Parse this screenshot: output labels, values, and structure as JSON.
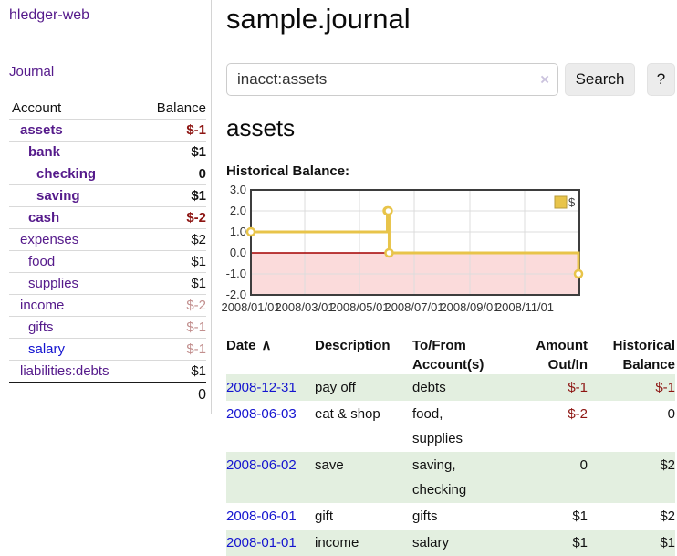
{
  "app_title": "hledger-web",
  "colors": {
    "link_purple": "#551a8b",
    "link_blue": "#1515d0",
    "negative_strong": "#8d1512",
    "negative_faded": "#c28f8e",
    "row_highlight_green": "#e3efe0",
    "button_gray": "#ececec"
  },
  "sidebar": {
    "journal_link": "Journal",
    "account_header": "Account",
    "balance_header": "Balance",
    "accounts": [
      {
        "name": "assets",
        "balance": "$-1",
        "indent": 1,
        "in_account": true,
        "name_style": "purple",
        "balance_style": "negative"
      },
      {
        "name": "bank",
        "balance": "$1",
        "indent": 2,
        "in_account": true,
        "name_style": "purple",
        "balance_style": "normal"
      },
      {
        "name": "checking",
        "balance": "0",
        "indent": 3,
        "in_account": true,
        "name_style": "purple",
        "balance_style": "normal"
      },
      {
        "name": "saving",
        "balance": "$1",
        "indent": 3,
        "in_account": true,
        "name_style": "purple",
        "balance_style": "normal"
      },
      {
        "name": "cash",
        "balance": "$-2",
        "indent": 2,
        "in_account": true,
        "name_style": "purple",
        "balance_style": "negative"
      },
      {
        "name": "expenses",
        "balance": "$2",
        "indent": 1,
        "in_account": false,
        "name_style": "purple",
        "balance_style": "normal"
      },
      {
        "name": "food",
        "balance": "$1",
        "indent": 2,
        "in_account": false,
        "name_style": "purple",
        "balance_style": "normal"
      },
      {
        "name": "supplies",
        "balance": "$1",
        "indent": 2,
        "in_account": false,
        "name_style": "purple",
        "balance_style": "normal"
      },
      {
        "name": "income",
        "balance": "$-2",
        "indent": 1,
        "in_account": false,
        "name_style": "purple",
        "balance_style": "negative-faded"
      },
      {
        "name": "gifts",
        "balance": "$-1",
        "indent": 2,
        "in_account": false,
        "name_style": "purple",
        "balance_style": "negative-faded"
      },
      {
        "name": "salary",
        "balance": "$-1",
        "indent": 2,
        "in_account": false,
        "name_style": "blue",
        "balance_style": "negative-faded"
      },
      {
        "name": "liabilities:debts",
        "balance": "$1",
        "indent": 1,
        "in_account": false,
        "name_style": "purple",
        "balance_style": "normal"
      }
    ],
    "total": "0"
  },
  "main": {
    "title": "sample.journal",
    "search": {
      "value": "inacct:assets",
      "clear_icon": "×",
      "search_button": "Search",
      "help_button": "?"
    },
    "account_heading": "assets"
  },
  "chart_data": {
    "type": "line",
    "step": true,
    "title": "Historical Balance:",
    "legend": [
      {
        "label": "$",
        "color": "#e8c44a"
      }
    ],
    "legend_position": "top-right",
    "grid": true,
    "x_range": [
      "2008-01-01",
      "2009-01-01"
    ],
    "x_ticks": [
      "2008/01/01",
      "2008/03/01",
      "2008/05/01",
      "2008/07/01",
      "2008/09/01",
      "2008/11/01"
    ],
    "y_ticks": [
      "3.0",
      "2.0",
      "1.0",
      "0.0",
      "-1.0",
      "-2.0"
    ],
    "ylim": [
      -2,
      3
    ],
    "series": [
      {
        "name": "$",
        "points": [
          {
            "date": "2008-01-01",
            "value": 1
          },
          {
            "date": "2008-06-01",
            "value": 2
          },
          {
            "date": "2008-06-02",
            "value": 2
          },
          {
            "date": "2008-06-03",
            "value": 0
          },
          {
            "date": "2008-12-31",
            "value": -1
          }
        ]
      }
    ],
    "line_color": "#e8c44a",
    "marker_fill": "#ffffff",
    "negative_region_color": "#fbdbdb",
    "zero_line_color": "#a40000",
    "grid_color": "#dcdcdc",
    "frame_color": "#3d3d3d"
  },
  "register": {
    "headers": [
      {
        "line1": "Date",
        "line2": "",
        "align": "left",
        "sort_icon": "∧"
      },
      {
        "line1": "Description",
        "line2": "",
        "align": "left"
      },
      {
        "line1": "To/From",
        "line2": "Account(s)",
        "align": "left"
      },
      {
        "line1": "Amount",
        "line2": "Out/In",
        "align": "right"
      },
      {
        "line1": "Historical",
        "line2": "Balance",
        "align": "right"
      }
    ],
    "rows": [
      {
        "date": "2008-12-31",
        "description": "pay off",
        "accounts": "debts",
        "amount": "$-1",
        "amount_negative": true,
        "balance": "$-1",
        "balance_negative": true
      },
      {
        "date": "2008-06-03",
        "description": "eat & shop",
        "accounts": "food, supplies",
        "amount": "$-2",
        "amount_negative": true,
        "balance": "0",
        "balance_negative": false
      },
      {
        "date": "2008-06-02",
        "description": "save",
        "accounts": "saving, checking",
        "amount": "0",
        "amount_negative": false,
        "balance": "$2",
        "balance_negative": false
      },
      {
        "date": "2008-06-01",
        "description": "gift",
        "accounts": "gifts",
        "amount": "$1",
        "amount_negative": false,
        "balance": "$2",
        "balance_negative": false
      },
      {
        "date": "2008-01-01",
        "description": "income",
        "accounts": "salary",
        "amount": "$1",
        "amount_negative": false,
        "balance": "$1",
        "balance_negative": false
      }
    ]
  }
}
